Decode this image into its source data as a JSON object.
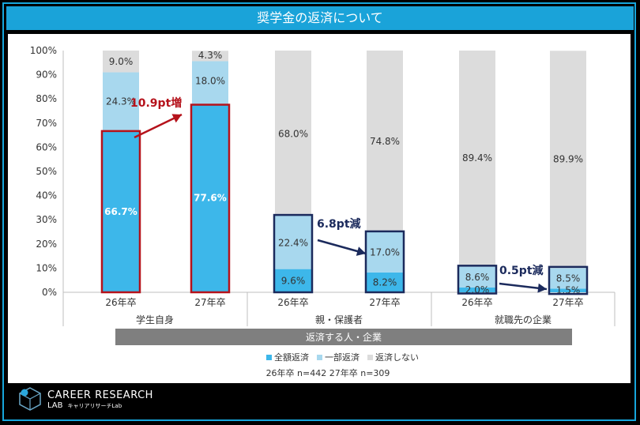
{
  "title": "奨学金の返済について",
  "chart_data": {
    "type": "bar",
    "stacked": true,
    "ylim": [
      0,
      100
    ],
    "yticks": [
      "0%",
      "10%",
      "20%",
      "30%",
      "40%",
      "50%",
      "60%",
      "70%",
      "80%",
      "90%",
      "100%"
    ],
    "categories": [
      "26年卒",
      "27年卒",
      "26年卒",
      "27年卒",
      "26年卒",
      "27年卒"
    ],
    "groups": [
      "学生自身",
      "親・保護者",
      "就職先の企業"
    ],
    "group_header": "返済する人・企業",
    "series": [
      {
        "name": "全額返済",
        "color": "#3db7ea",
        "values": [
          66.7,
          77.6,
          9.6,
          8.2,
          2.0,
          1.5
        ],
        "labels": [
          "66.7%",
          "77.6%",
          "9.6%",
          "8.2%",
          "2.0%",
          "1.5%"
        ]
      },
      {
        "name": "一部返済",
        "color": "#a8d8ee",
        "values": [
          24.3,
          18.0,
          22.4,
          17.0,
          8.6,
          8.5
        ],
        "labels": [
          "24.3%",
          "18.0%",
          "22.4%",
          "17.0%",
          "8.6%",
          "8.5%"
        ]
      },
      {
        "name": "返済しない",
        "color": "#dcdcdc",
        "values": [
          9.0,
          4.3,
          68.0,
          74.8,
          89.4,
          89.9
        ],
        "labels": [
          "9.0%",
          "4.3%",
          "68.0%",
          "74.8%",
          "89.4%",
          "89.9%"
        ]
      }
    ],
    "annotations": [
      {
        "text": "10.9pt増",
        "color": "#b5121b"
      },
      {
        "text": "6.8pt減",
        "color": "#1b2a5c"
      },
      {
        "text": "0.5pt減",
        "color": "#1b2a5c"
      }
    ],
    "sample_note": "26年卒 n=442  27年卒 n=309"
  },
  "logo": {
    "name": "CAREER RESEARCH",
    "lab": "LAB",
    "jp": "キャリアリサーチLab"
  }
}
